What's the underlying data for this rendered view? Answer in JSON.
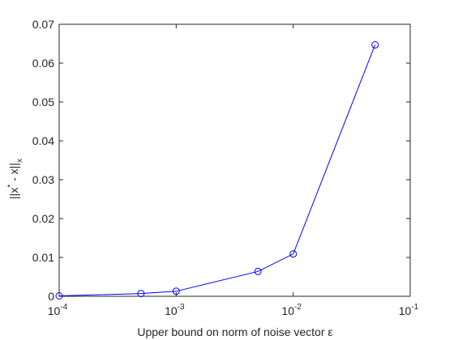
{
  "chart_data": {
    "type": "line",
    "title": "",
    "xlabel": "Upper bound on norm of noise vector ε",
    "ylabel": "||x* - x||x",
    "ylabel_parts": {
      "base": "||x",
      "sup": "*",
      "mid": " - x||",
      "sub": "x"
    },
    "xscale": "log",
    "xlim": [
      0.0001,
      0.1
    ],
    "ylim": [
      0,
      0.07
    ],
    "xticks": [
      {
        "value": 0.0001,
        "base": "10",
        "exp": "-4"
      },
      {
        "value": 0.001,
        "base": "10",
        "exp": "-3"
      },
      {
        "value": 0.01,
        "base": "10",
        "exp": "-2"
      },
      {
        "value": 0.1,
        "base": "10",
        "exp": "-1"
      }
    ],
    "yticks": [
      0,
      0.01,
      0.02,
      0.03,
      0.04,
      0.05,
      0.06,
      0.07
    ],
    "ytick_labels": [
      "0",
      "0.01",
      "0.02",
      "0.03",
      "0.04",
      "0.05",
      "0.06",
      "0.07"
    ],
    "grid": false,
    "series": [
      {
        "color": "#0000ff",
        "marker": "circle",
        "x": [
          0.0001,
          0.0005,
          0.001,
          0.005,
          0.01,
          0.05
        ],
        "y": [
          0.0001,
          0.0007,
          0.0013,
          0.0064,
          0.0109,
          0.0647
        ]
      }
    ]
  }
}
